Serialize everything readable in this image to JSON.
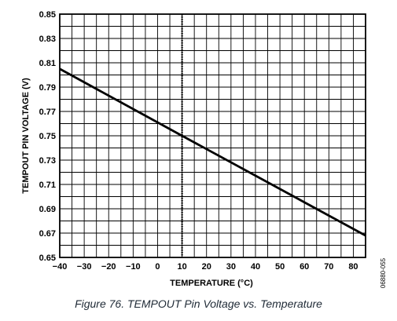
{
  "chart_data": {
    "type": "line",
    "xlabel": "TEMPERATURE (°C)",
    "ylabel": "TEMPOUT PIN VOLTAGE (V)",
    "xlim": [
      -40,
      85
    ],
    "ylim": [
      0.65,
      0.85
    ],
    "x_tick_labels": [
      "−40",
      "−30",
      "−20",
      "−10",
      "0",
      "10",
      "20",
      "30",
      "40",
      "50",
      "60",
      "70",
      "80"
    ],
    "x_tick_values": [
      -40,
      -30,
      -20,
      -10,
      0,
      10,
      20,
      30,
      40,
      50,
      60,
      70,
      80
    ],
    "y_tick_labels": [
      "0.65",
      "0.67",
      "0.69",
      "0.71",
      "0.73",
      "0.75",
      "0.77",
      "0.79",
      "0.81",
      "0.83",
      "0.85"
    ],
    "y_tick_values": [
      0.65,
      0.67,
      0.69,
      0.71,
      0.73,
      0.75,
      0.77,
      0.79,
      0.81,
      0.83,
      0.85
    ],
    "x_minor_step": 5,
    "y_minor_step": 0.01,
    "grid": true,
    "reference_line_x": 10,
    "series": [
      {
        "x": [
          -40,
          10,
          85
        ],
        "y": [
          0.805,
          0.75,
          0.668
        ],
        "color": "#000000"
      }
    ],
    "figure_id": "06880-055"
  },
  "caption": "Figure 76. TEMPOUT Pin Voltage vs. Temperature"
}
